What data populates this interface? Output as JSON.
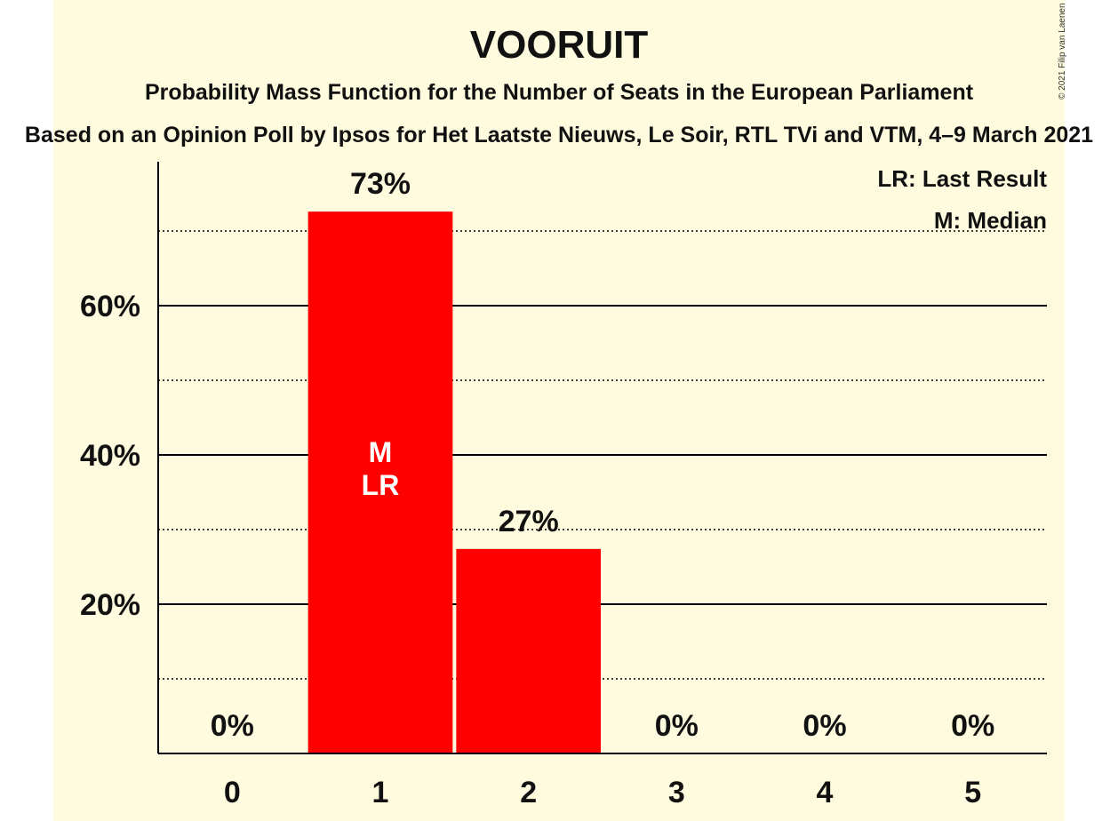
{
  "chart_data": {
    "type": "bar",
    "title": "VOORUIT",
    "subtitle": "Probability Mass Function for the Number of Seats in the European Parliament",
    "source": "Based on an Opinion Poll by Ipsos for Het Laatste Nieuws, Le Soir, RTL TVi and VTM, 4–9 March 2021",
    "copyright": "© 2021 Filip van Laenen",
    "categories": [
      "0",
      "1",
      "2",
      "3",
      "4",
      "5"
    ],
    "values": [
      0,
      72.6,
      27.4,
      0,
      0,
      0
    ],
    "value_labels": [
      "0%",
      "73%",
      "27%",
      "0%",
      "0%",
      "0%"
    ],
    "bar_annotations": [
      "",
      "M\nLR",
      "",
      "",
      "",
      ""
    ],
    "ylim": [
      0,
      79
    ],
    "y_ticks": [
      {
        "value": 20,
        "label": "20%"
      },
      {
        "value": 40,
        "label": "40%"
      },
      {
        "value": 60,
        "label": "60%"
      }
    ],
    "y_minor_gridlines": [
      10,
      30,
      50,
      70
    ],
    "xlabel": "",
    "ylabel": "",
    "legend": [
      "LR: Last Result",
      "M: Median"
    ],
    "legend_position": "top-right",
    "bar_color": "#ff0000"
  }
}
